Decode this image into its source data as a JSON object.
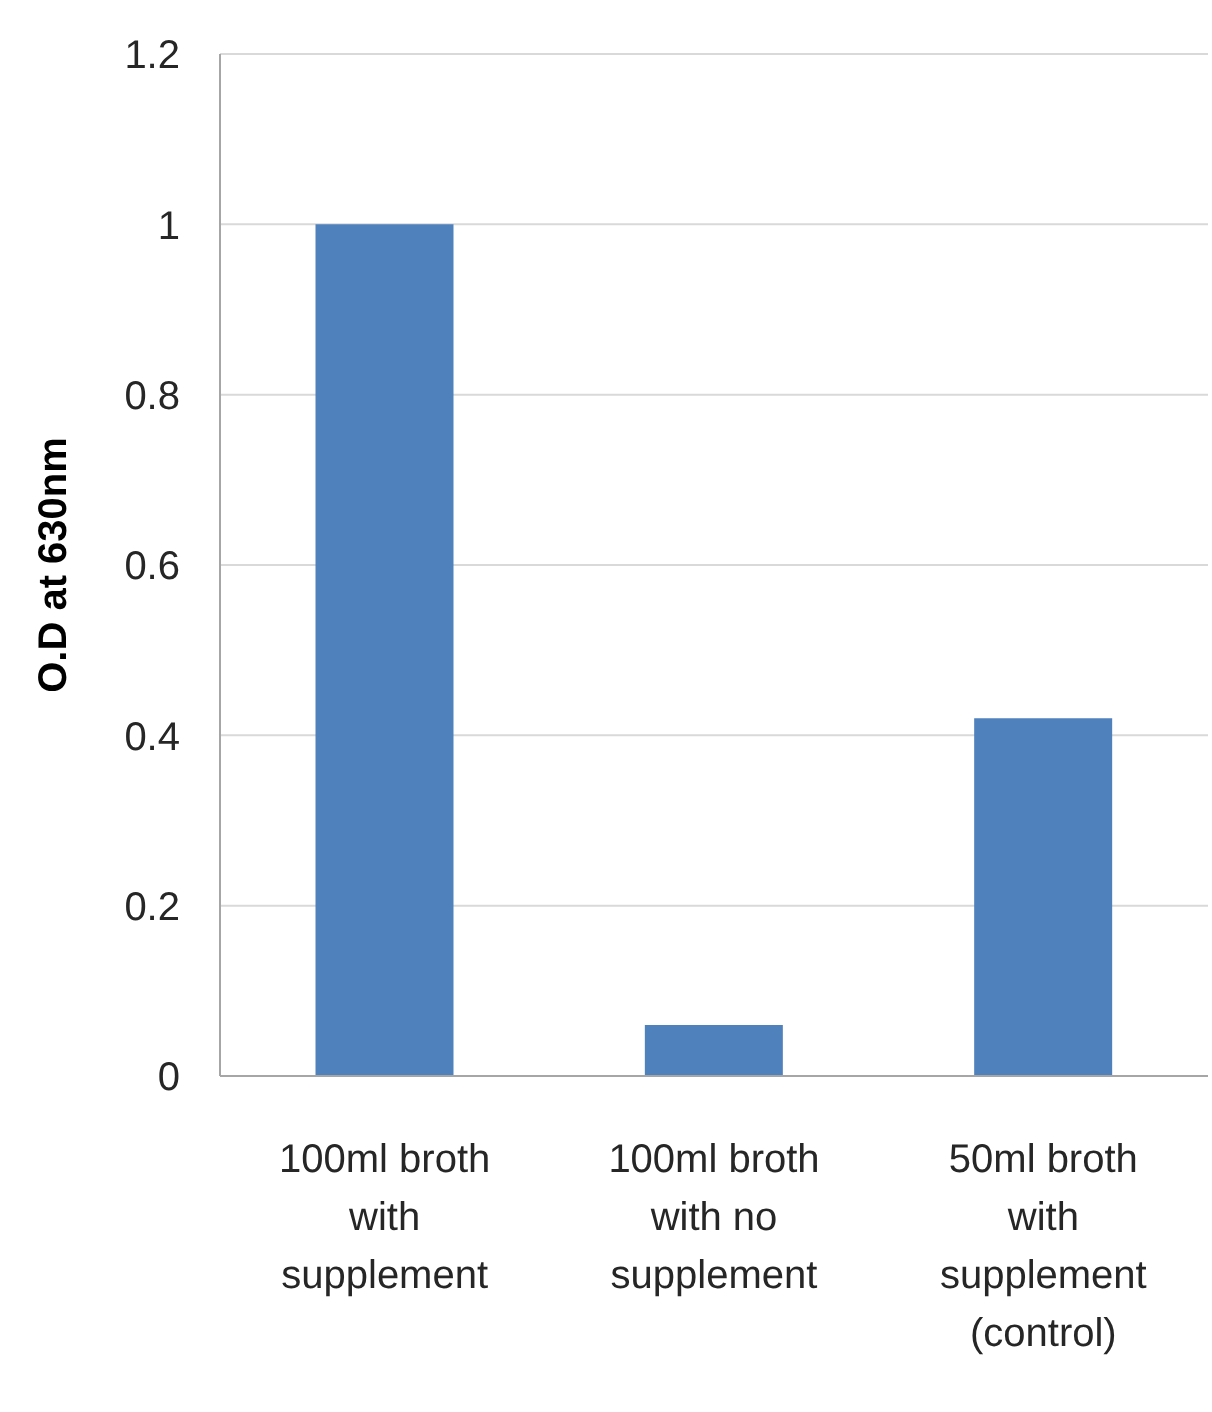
{
  "chart_data": {
    "type": "bar",
    "ylabel": "O.D at 630nm",
    "categories": [
      "100ml broth with supplement",
      "100ml broth with no supplement",
      "50ml broth with supplement (control)"
    ],
    "values": [
      1.0,
      0.06,
      0.42
    ],
    "color": "#4f81bd",
    "ylim": [
      0,
      1.2
    ],
    "yticks": [
      0,
      0.2,
      0.4,
      0.6,
      0.8,
      1,
      1.2
    ],
    "grid": "y",
    "legend": false
  }
}
